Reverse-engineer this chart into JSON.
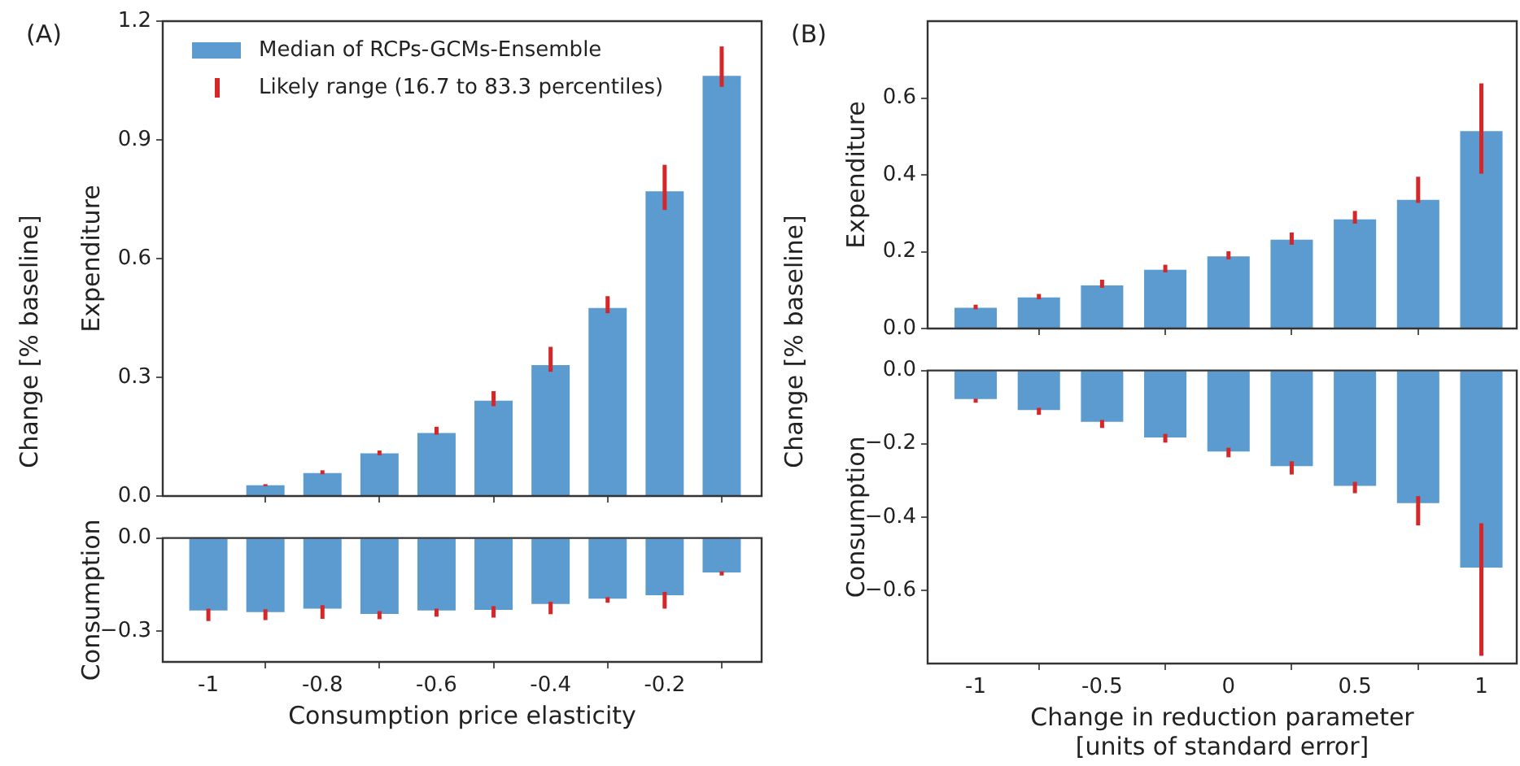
{
  "chart_data": [
    {
      "type": "bar",
      "title": "(A)",
      "ylabel": "Expenditure",
      "annotations": [
        "Change [% baseline]",
        "Likely range (16.7 to 83.3 percentiles)"
      ],
      "legend": "top left",
      "tick_labels": "y",
      "x": [
        -1,
        -0.9,
        -0.8,
        -0.7,
        -0.6,
        -0.5,
        -0.4,
        -0.3,
        -0.2,
        -0.1
      ],
      "series": [
        {
          "name": "Median of RCPs-GCMs-Ensemble",
          "color": "#5b9bd0",
          "values": [
            0,
            0.027,
            0.058,
            0.108,
            0.159,
            0.241,
            0.331,
            0.475,
            0.77,
            1.062
          ],
          "errors": [
            null,
            [
              0.025,
              0.03
            ],
            [
              0.055,
              0.065
            ],
            [
              0.103,
              0.115
            ],
            [
              0.155,
              0.175
            ],
            [
              0.227,
              0.265
            ],
            [
              0.314,
              0.377
            ],
            [
              0.462,
              0.505
            ],
            [
              0.723,
              0.837
            ],
            [
              1.034,
              1.136
            ]
          ]
        }
      ],
      "xlim": [
        -1.08,
        -0.03
      ],
      "xticks": [
        -1,
        -0.8,
        -0.6,
        -0.4,
        -0.2
      ],
      "ylim": [
        0,
        1.2
      ],
      "yticks": [
        {
          "value": 0,
          "label": "0.0"
        },
        0.3,
        0.6,
        0.9,
        1.2
      ]
    },
    {
      "type": "bar",
      "ylabel": "Consumption",
      "xlabel": "Consumption price elasticity",
      "x": [
        -1,
        -0.9,
        -0.8,
        -0.7,
        -0.6,
        -0.5,
        -0.4,
        -0.3,
        -0.2,
        -0.1
      ],
      "series": [
        {
          "color": "#5b9bd0",
          "values": [
            -0.234,
            -0.239,
            -0.228,
            -0.245,
            -0.234,
            -0.232,
            -0.213,
            -0.196,
            -0.185,
            -0.111
          ],
          "errors": [
            [
              -0.268,
              -0.228
            ],
            [
              -0.265,
              -0.23
            ],
            [
              -0.261,
              -0.217
            ],
            [
              -0.262,
              -0.236
            ],
            [
              -0.254,
              -0.228
            ],
            [
              -0.257,
              -0.22
            ],
            [
              -0.246,
              -0.206
            ],
            [
              -0.209,
              -0.191
            ],
            [
              -0.228,
              -0.174
            ],
            [
              -0.121,
              -0.108
            ]
          ]
        }
      ],
      "xlim": [
        -1.08,
        -0.03
      ],
      "xticks": [
        -1,
        -0.8,
        -0.6,
        -0.4,
        -0.2
      ],
      "ylim": [
        -0.4,
        0
      ],
      "yticks": [
        {
          "value": 0,
          "label": "0.0"
        },
        {
          "value": -0.3,
          "label": "−0.3"
        }
      ]
    },
    {
      "type": "bar",
      "title": "(B)",
      "ylabel": "Expenditure",
      "annotations": [
        "Change [% baseline]"
      ],
      "tick_labels": "y",
      "x": [
        -1,
        -0.75,
        -0.5,
        -0.25,
        0,
        0.25,
        0.5,
        0.75,
        1
      ],
      "series": [
        {
          "color": "#5b9bd0",
          "values": [
            0.054,
            0.081,
            0.112,
            0.153,
            0.188,
            0.231,
            0.284,
            0.335,
            0.514
          ],
          "errors": [
            [
              0.05,
              0.062
            ],
            [
              0.076,
              0.09
            ],
            [
              0.106,
              0.127
            ],
            [
              0.146,
              0.166
            ],
            [
              0.18,
              0.201
            ],
            [
              0.218,
              0.25
            ],
            [
              0.273,
              0.306
            ],
            [
              0.327,
              0.395
            ],
            [
              0.403,
              0.638
            ]
          ]
        }
      ],
      "xlim": [
        -1.19,
        1.14
      ],
      "xticks": [
        -1,
        -0.5,
        0,
        0.5,
        1
      ],
      "ylim": [
        0,
        0.8
      ],
      "yticks": [
        {
          "value": 0,
          "label": "0.0"
        },
        0.2,
        0.4,
        0.6
      ]
    },
    {
      "type": "bar",
      "ylabel": "Consumption",
      "xlabel": "Change in reduction parameter\n[units of standard error]",
      "x": [
        -1,
        -0.75,
        -0.5,
        -0.25,
        0,
        0.25,
        0.5,
        0.75,
        1
      ],
      "series": [
        {
          "color": "#5b9bd0",
          "values": [
            -0.078,
            -0.108,
            -0.14,
            -0.183,
            -0.221,
            -0.261,
            -0.315,
            -0.362,
            -0.538
          ],
          "errors": [
            [
              -0.088,
              -0.077
            ],
            [
              -0.121,
              -0.102
            ],
            [
              -0.157,
              -0.135
            ],
            [
              -0.197,
              -0.173
            ],
            [
              -0.237,
              -0.211
            ],
            [
              -0.284,
              -0.248
            ],
            [
              -0.335,
              -0.304
            ],
            [
              -0.423,
              -0.343
            ],
            [
              -0.779,
              -0.417
            ]
          ]
        }
      ],
      "xlim": [
        -1.19,
        1.14
      ],
      "xticks": [
        -1,
        -0.5,
        0,
        0.5,
        1
      ],
      "ylim": [
        -0.8,
        0
      ],
      "yticks": [
        {
          "value": 0,
          "label": "0.0"
        },
        {
          "value": -0.2,
          "label": "−0.2"
        },
        {
          "value": -0.4,
          "label": "−0.4"
        },
        {
          "value": -0.6,
          "label": "−0.6"
        }
      ]
    }
  ]
}
